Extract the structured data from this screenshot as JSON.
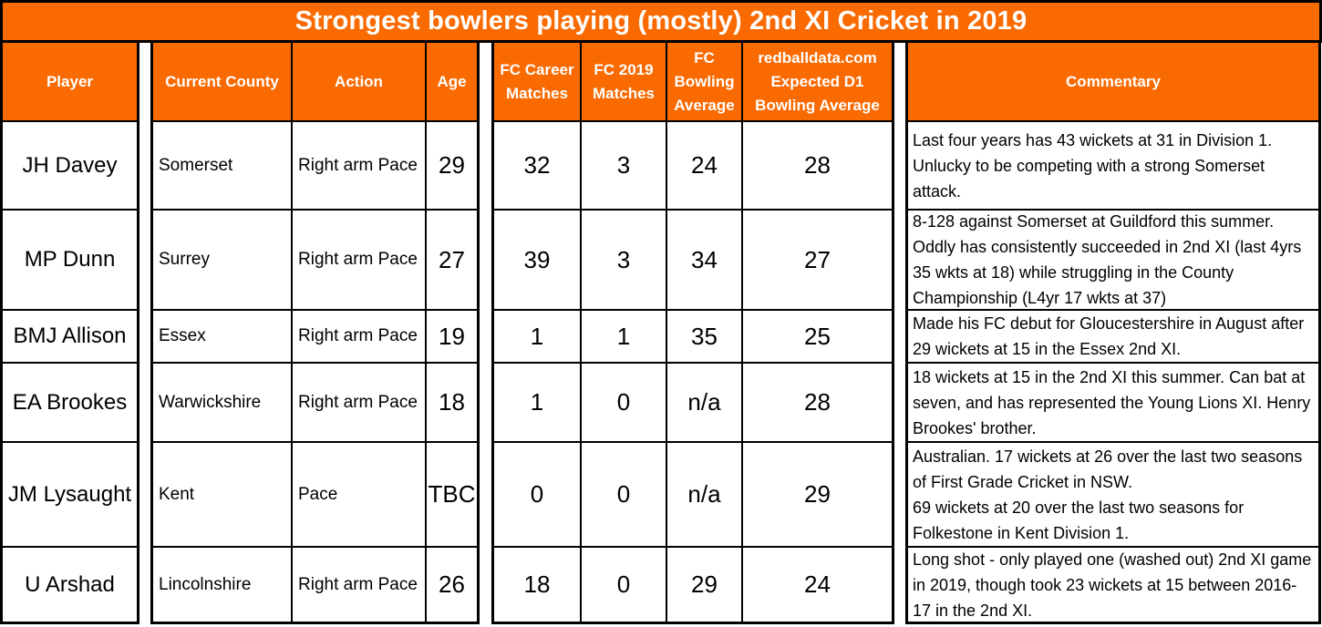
{
  "title": "Strongest bowlers playing (mostly) 2nd XI Cricket in 2019",
  "colors": {
    "accent_orange": "#F96A01",
    "border": "#000000",
    "header_text": "#FFFFFF",
    "body_text": "#000000",
    "background": "#FFFFFF"
  },
  "columns": {
    "player": "Player",
    "county": "Current County",
    "action": "Action",
    "age": "Age",
    "fc_career_matches": "FC Career\nMatches",
    "fc_2019_matches": "FC 2019\nMatches",
    "fc_bowling_average": "FC\nBowling\nAverage",
    "expected_d1_average": "redballdata.com\nExpected D1\nBowling Average",
    "commentary": "Commentary"
  },
  "rows": [
    {
      "player": "JH Davey",
      "county": "Somerset",
      "action": "Right arm Pace",
      "age": "29",
      "fc_career_matches": "32",
      "fc_2019_matches": "3",
      "fc_bowling_average": "24",
      "expected_d1_average": "28",
      "commentary": "Last four years has 43 wickets at 31 in Division 1. Unlucky to be competing with a strong Somerset attack."
    },
    {
      "player": "MP Dunn",
      "county": "Surrey",
      "action": "Right arm Pace",
      "age": "27",
      "fc_career_matches": "39",
      "fc_2019_matches": "3",
      "fc_bowling_average": "34",
      "expected_d1_average": "27",
      "commentary": "8-128 against Somerset at Guildford this summer. Oddly has consistently succeeded in 2nd XI (last 4yrs 35 wkts at 18) while struggling in the County Championship (L4yr 17 wkts at 37)"
    },
    {
      "player": "BMJ Allison",
      "county": "Essex",
      "action": "Right arm Pace",
      "age": "19",
      "fc_career_matches": "1",
      "fc_2019_matches": "1",
      "fc_bowling_average": "35",
      "expected_d1_average": "25",
      "commentary": "Made his FC debut for Gloucestershire in August after 29 wickets at 15 in the Essex 2nd XI."
    },
    {
      "player": "EA Brookes",
      "county": "Warwickshire",
      "action": "Right arm Pace",
      "age": "18",
      "fc_career_matches": "1",
      "fc_2019_matches": "0",
      "fc_bowling_average": "n/a",
      "expected_d1_average": "28",
      "commentary": "18 wickets at 15 in the 2nd XI this summer. Can bat at seven, and has represented the Young Lions XI. Henry Brookes' brother."
    },
    {
      "player": "JM Lysaught",
      "county": "Kent",
      "action": "Pace",
      "age": "TBC",
      "fc_career_matches": "0",
      "fc_2019_matches": "0",
      "fc_bowling_average": "n/a",
      "expected_d1_average": "29",
      "commentary": "Australian. 17 wickets at 26 over the last two seasons of First Grade Cricket in NSW.\n69 wickets at 20 over the last two seasons for Folkestone in Kent Division 1."
    },
    {
      "player": "U Arshad",
      "county": "Lincolnshire",
      "action": "Right arm Pace",
      "age": "26",
      "fc_career_matches": "18",
      "fc_2019_matches": "0",
      "fc_bowling_average": "29",
      "expected_d1_average": "24",
      "commentary": "Long shot - only played one (washed out) 2nd XI game in 2019, though took 23 wickets at 15 between 2016-17 in the 2nd XI."
    }
  ]
}
